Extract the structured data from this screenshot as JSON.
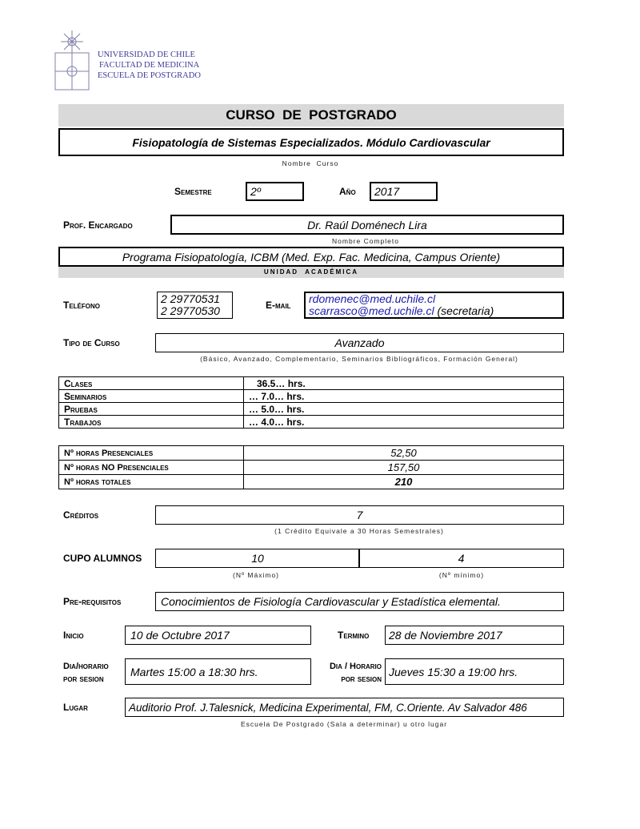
{
  "header": {
    "university": "UNIVERSIDAD DE CHILE",
    "faculty": "FACULTAD DE MEDICINA",
    "school": "ESCUELA DE POSTGRADO",
    "title": "CURSO  DE  POSTGRADO"
  },
  "course": {
    "name": "Fisiopatología de Sistemas Especializados. Módulo Cardiovascular",
    "name_caption": "Nombre  Curso"
  },
  "semester": {
    "label": "Semestre",
    "value": "2º"
  },
  "year": {
    "label": "Año",
    "value": "2017"
  },
  "professor": {
    "label": "Prof. Encargado",
    "value": "Dr. Raúl Doménech Lira",
    "caption": "Nombre Completo"
  },
  "unit": {
    "value": "Programa Fisiopatología, ICBM (Med. Exp. Fac. Medicina, Campus Oriente)",
    "caption": "UNIDAD  ACADÉMICA"
  },
  "phone": {
    "label": "Teléfono",
    "values": [
      "2 29770531",
      "2 29770530"
    ]
  },
  "email": {
    "label": "E-mail",
    "primary": "rdomenec@med.uchile.cl",
    "secondary": "scarrasco@med.uchile.cl",
    "secondary_note": "(secretaria)"
  },
  "course_type": {
    "label": "Tipo de Curso",
    "value": "Avanzado",
    "caption": "(Básico, Avanzado, Complementario, Seminarios Bibliográficos, Formación General)"
  },
  "hours": [
    {
      "label": "Clases",
      "value": "36.5… hrs."
    },
    {
      "label": "Seminarios",
      "value": "… 7.0… hrs."
    },
    {
      "label": "Pruebas",
      "value": "… 5.0… hrs."
    },
    {
      "label": "Trabajos",
      "value": "… 4.0… hrs."
    }
  ],
  "totals": [
    {
      "label": "Nº horas Presenciales",
      "value": "52,50"
    },
    {
      "label": "Nº horas NO Presenciales",
      "value": "157,50"
    },
    {
      "label": "Nº horas totales",
      "value": "210"
    }
  ],
  "credits": {
    "label": "Créditos",
    "value": "7",
    "caption": "(1 Crédito Equivale a 30 Horas Semestrales)"
  },
  "quota": {
    "label": "CUPO ALUMNOS",
    "max": "10",
    "min": "4",
    "max_caption": "(Nº Máximo)",
    "min_caption": "(Nº mínimo)"
  },
  "prereq": {
    "label": "Pre-requisitos",
    "value": "Conocimientos de Fisiología Cardiovascular y Estadística elemental."
  },
  "start": {
    "label": "Inicio",
    "value": "10 de Octubre 2017"
  },
  "end": {
    "label": "Termino",
    "value": "28 de Noviembre 2017"
  },
  "schedule1": {
    "label1": "Dia/horario",
    "label2": "por sesion",
    "value": "Martes 15:00 a 18:30 hrs."
  },
  "schedule2": {
    "label1": "Dia / Horario",
    "label2": "por sesion",
    "value": "Jueves 15:30 a 19:00 hrs."
  },
  "place": {
    "label": "Lugar",
    "value": "Auditorio Prof. J.Talesnick, Medicina Experimental, FM, C.Oriente. Av Salvador 486",
    "caption": "Escuela De Postgrado (Sala a determinar) u otro lugar"
  }
}
